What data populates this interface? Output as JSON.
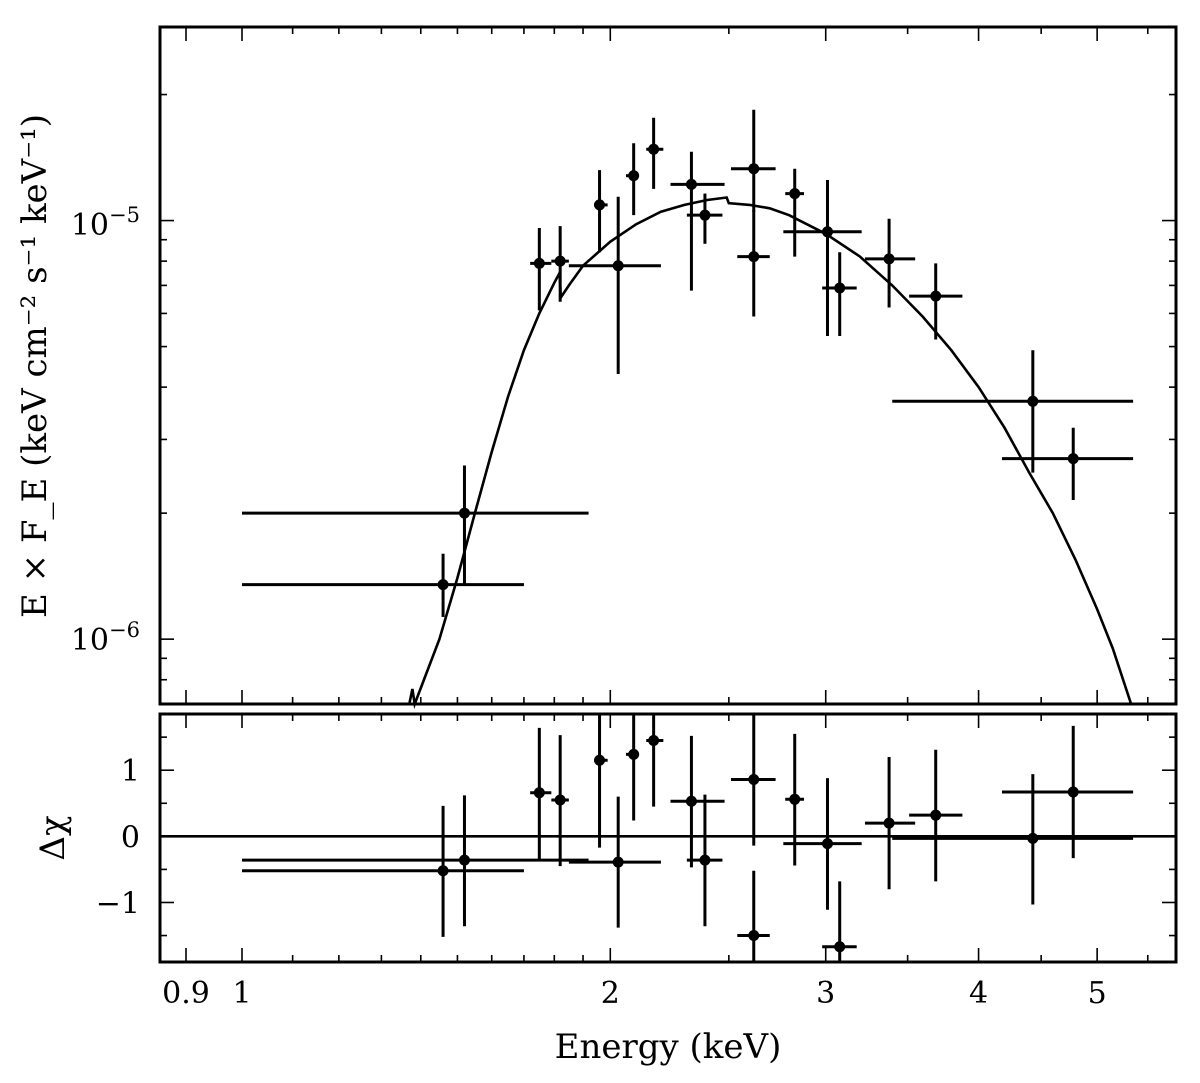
{
  "chart_data": [
    {
      "type": "scatter",
      "panel": "spectrum",
      "xscale": "log",
      "yscale": "log",
      "xlim": [
        0.857,
        5.8
      ],
      "ylim": [
        7e-07,
        2.9e-05
      ],
      "ylabel": "E × F_E (keV cm⁻² s⁻¹ keV⁻¹)",
      "ytick_labels": [
        {
          "value": 1e-05,
          "base": "10",
          "exp": "−5"
        },
        {
          "value": 1e-06,
          "base": "10",
          "exp": "−6"
        }
      ],
      "data": [
        {
          "x": 1.46,
          "xlo": 1.0,
          "xhi": 1.7,
          "y": 1.35e-06,
          "ylo": 1.13e-06,
          "yhi": 1.6e-06
        },
        {
          "x": 1.52,
          "xlo": 1.0,
          "xhi": 1.92,
          "y": 2e-06,
          "ylo": 1.35e-06,
          "yhi": 2.6e-06
        },
        {
          "x": 1.75,
          "xlo": 1.72,
          "xhi": 1.79,
          "y": 7.9e-06,
          "ylo": 6.1e-06,
          "yhi": 9.6e-06
        },
        {
          "x": 1.82,
          "xlo": 1.79,
          "xhi": 1.85,
          "y": 8e-06,
          "ylo": 6.4e-06,
          "yhi": 9.7e-06
        },
        {
          "x": 1.96,
          "xlo": 1.94,
          "xhi": 1.99,
          "y": 1.09e-05,
          "ylo": 8.4e-06,
          "yhi": 1.32e-05
        },
        {
          "x": 2.03,
          "xlo": 1.85,
          "xhi": 2.2,
          "y": 7.8e-06,
          "ylo": 4.3e-06,
          "yhi": 1.14e-05
        },
        {
          "x": 2.09,
          "xlo": 2.06,
          "xhi": 2.11,
          "y": 1.28e-05,
          "ylo": 1.03e-05,
          "yhi": 1.53e-05
        },
        {
          "x": 2.17,
          "xlo": 2.14,
          "xhi": 2.21,
          "y": 1.48e-05,
          "ylo": 1.19e-05,
          "yhi": 1.76e-05
        },
        {
          "x": 2.33,
          "xlo": 2.24,
          "xhi": 2.48,
          "y": 1.22e-05,
          "ylo": 6.8e-06,
          "yhi": 1.46e-05
        },
        {
          "x": 2.39,
          "xlo": 2.31,
          "xhi": 2.47,
          "y": 1.03e-05,
          "ylo": 8.8e-06,
          "yhi": 1.16e-05
        },
        {
          "x": 2.62,
          "xlo": 2.51,
          "xhi": 2.73,
          "y": 1.33e-05,
          "ylo": 1.05e-05,
          "yhi": 1.84e-05
        },
        {
          "x": 2.62,
          "xlo": 2.54,
          "xhi": 2.7,
          "y": 8.2e-06,
          "ylo": 5.9e-06,
          "yhi": 1.06e-05
        },
        {
          "x": 2.83,
          "xlo": 2.78,
          "xhi": 2.88,
          "y": 1.16e-05,
          "ylo": 8.2e-06,
          "yhi": 1.33e-05
        },
        {
          "x": 3.01,
          "xlo": 2.77,
          "xhi": 3.21,
          "y": 9.4e-06,
          "ylo": 5.3e-06,
          "yhi": 1.25e-05
        },
        {
          "x": 3.08,
          "xlo": 2.98,
          "xhi": 3.18,
          "y": 6.9e-06,
          "ylo": 5.3e-06,
          "yhi": 8.4e-06
        },
        {
          "x": 3.38,
          "xlo": 3.23,
          "xhi": 3.55,
          "y": 8.1e-06,
          "ylo": 6.2e-06,
          "yhi": 1.01e-05
        },
        {
          "x": 3.69,
          "xlo": 3.51,
          "xhi": 3.88,
          "y": 6.6e-06,
          "ylo": 5.2e-06,
          "yhi": 7.9e-06
        },
        {
          "x": 4.43,
          "xlo": 3.4,
          "xhi": 5.35,
          "y": 3.7e-06,
          "ylo": 2.5e-06,
          "yhi": 4.9e-06
        },
        {
          "x": 4.78,
          "xlo": 4.18,
          "xhi": 5.35,
          "y": 2.7e-06,
          "ylo": 2.15e-06,
          "yhi": 3.2e-06
        }
      ],
      "model_curve": [
        [
          1.37,
          6.7e-07
        ],
        [
          1.378,
          7.6e-07
        ],
        [
          1.384,
          6.9e-07
        ],
        [
          1.45,
          1e-06
        ],
        [
          1.5,
          1.4e-06
        ],
        [
          1.55,
          2e-06
        ],
        [
          1.6,
          2.8e-06
        ],
        [
          1.65,
          3.8e-06
        ],
        [
          1.7,
          4.9e-06
        ],
        [
          1.75,
          6e-06
        ],
        [
          1.8,
          7.1e-06
        ],
        [
          1.818,
          7.5e-06
        ],
        [
          1.822,
          6.55e-06
        ],
        [
          1.85,
          7e-06
        ],
        [
          1.9,
          7.8e-06
        ],
        [
          2.0,
          8.9e-06
        ],
        [
          2.1,
          9.8e-06
        ],
        [
          2.2,
          1.05e-05
        ],
        [
          2.3,
          1.09e-05
        ],
        [
          2.4,
          1.12e-05
        ],
        [
          2.49,
          1.135e-05
        ],
        [
          2.5,
          1.1e-05
        ],
        [
          2.6,
          1.09e-05
        ],
        [
          2.7,
          1.07e-05
        ],
        [
          2.8,
          1.03e-05
        ],
        [
          3.0,
          9.3e-06
        ],
        [
          3.2,
          8.2e-06
        ],
        [
          3.4,
          7e-06
        ],
        [
          3.6,
          5.9e-06
        ],
        [
          3.8,
          4.9e-06
        ],
        [
          4.0,
          4e-06
        ],
        [
          4.2,
          3.2e-06
        ],
        [
          4.4,
          2.5e-06
        ],
        [
          4.6,
          2e-06
        ],
        [
          4.8,
          1.55e-06
        ],
        [
          5.0,
          1.18e-06
        ],
        [
          5.15,
          9.5e-07
        ],
        [
          5.33,
          7e-07
        ]
      ]
    },
    {
      "type": "scatter",
      "panel": "residuals",
      "xscale": "log",
      "yscale": "linear",
      "xlim": [
        0.857,
        5.8
      ],
      "ylim": [
        -1.9,
        1.85
      ],
      "ylabel": "Δχ",
      "xlabel": "Energy (keV)",
      "xtick_labels": [
        {
          "value": 0.9,
          "label": "0.9"
        },
        {
          "value": 1,
          "label": "1"
        },
        {
          "value": 2,
          "label": "2"
        },
        {
          "value": 3,
          "label": "3"
        },
        {
          "value": 4,
          "label": "4"
        },
        {
          "value": 5,
          "label": "5"
        }
      ],
      "ytick_labels": [
        {
          "value": 1,
          "label": "1"
        },
        {
          "value": 0,
          "label": "0"
        },
        {
          "value": -1,
          "label": "−1"
        }
      ],
      "zero_line": 0,
      "data": [
        {
          "x": 1.46,
          "xlo": 1.0,
          "xhi": 1.7,
          "y": -0.52,
          "ylo": -1.52,
          "yhi": 0.46
        },
        {
          "x": 1.52,
          "xlo": 1.0,
          "xhi": 1.92,
          "y": -0.36,
          "ylo": -1.36,
          "yhi": 0.62
        },
        {
          "x": 1.75,
          "xlo": 1.72,
          "xhi": 1.79,
          "y": 0.66,
          "ylo": -0.34,
          "yhi": 1.64
        },
        {
          "x": 1.82,
          "xlo": 1.79,
          "xhi": 1.85,
          "y": 0.55,
          "ylo": -0.45,
          "yhi": 1.53
        },
        {
          "x": 1.96,
          "xlo": 1.94,
          "xhi": 1.99,
          "y": 1.15,
          "ylo": -0.17,
          "yhi": 1.85
        },
        {
          "x": 2.03,
          "xlo": 1.85,
          "xhi": 2.2,
          "y": -0.39,
          "ylo": -1.38,
          "yhi": 0.6
        },
        {
          "x": 2.09,
          "xlo": 2.06,
          "xhi": 2.11,
          "y": 1.24,
          "ylo": 0.24,
          "yhi": 1.85
        },
        {
          "x": 2.17,
          "xlo": 2.14,
          "xhi": 2.21,
          "y": 1.45,
          "ylo": 0.45,
          "yhi": 1.85
        },
        {
          "x": 2.33,
          "xlo": 2.24,
          "xhi": 2.48,
          "y": 0.53,
          "ylo": -0.47,
          "yhi": 1.52
        },
        {
          "x": 2.39,
          "xlo": 2.31,
          "xhi": 2.47,
          "y": -0.36,
          "ylo": -1.36,
          "yhi": 0.63
        },
        {
          "x": 2.62,
          "xlo": 2.51,
          "xhi": 2.73,
          "y": 0.86,
          "ylo": -0.14,
          "yhi": 1.85
        },
        {
          "x": 2.62,
          "xlo": 2.54,
          "xhi": 2.7,
          "y": -1.5,
          "ylo": -1.9,
          "yhi": -0.52
        },
        {
          "x": 2.83,
          "xlo": 2.78,
          "xhi": 2.88,
          "y": 0.56,
          "ylo": -0.44,
          "yhi": 1.55
        },
        {
          "x": 3.01,
          "xlo": 2.77,
          "xhi": 3.21,
          "y": -0.11,
          "ylo": -1.11,
          "yhi": 0.88
        },
        {
          "x": 3.08,
          "xlo": 2.98,
          "xhi": 3.18,
          "y": -1.67,
          "ylo": -1.9,
          "yhi": -0.68
        },
        {
          "x": 3.38,
          "xlo": 3.23,
          "xhi": 3.55,
          "y": 0.2,
          "ylo": -0.8,
          "yhi": 1.2
        },
        {
          "x": 3.69,
          "xlo": 3.51,
          "xhi": 3.88,
          "y": 0.32,
          "ylo": -0.68,
          "yhi": 1.31
        },
        {
          "x": 4.43,
          "xlo": 3.4,
          "xhi": 5.35,
          "y": -0.03,
          "ylo": -1.03,
          "yhi": 0.94
        },
        {
          "x": 4.78,
          "xlo": 4.18,
          "xhi": 5.35,
          "y": 0.67,
          "ylo": -0.33,
          "yhi": 1.67
        }
      ]
    }
  ]
}
